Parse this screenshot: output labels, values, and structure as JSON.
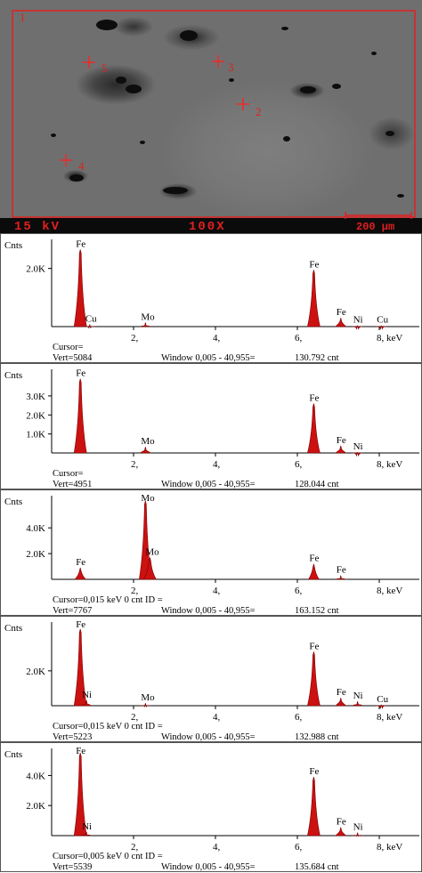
{
  "sem": {
    "region_label": "1",
    "points": [
      {
        "label": "2"
      },
      {
        "label": "3"
      },
      {
        "label": "4"
      },
      {
        "label": "5"
      }
    ],
    "voltage": "15 kV",
    "magnification": "100X",
    "scale_bar": "200 µm",
    "colors": {
      "frame": "#e02020",
      "marker": "#ff2020",
      "text": "#e02020"
    }
  },
  "spectra": [
    {
      "ylabel": "Cnts",
      "yticks": [
        "2.0K"
      ],
      "xticks": [
        "2,",
        "4,",
        "6,",
        "8, keV"
      ],
      "peaks": [
        {
          "element": "Fe",
          "energy": 0.7,
          "height": 2650
        },
        {
          "element": "Cu",
          "energy": 0.93,
          "height": 80
        },
        {
          "element": "Mo",
          "energy": 2.29,
          "height": 140
        },
        {
          "element": "Fe",
          "energy": 6.4,
          "height": 1950
        },
        {
          "element": "Fe",
          "energy": 7.06,
          "height": 300
        },
        {
          "element": "Ni",
          "energy": 7.47,
          "height": 40
        },
        {
          "element": "Cu",
          "energy": 8.05,
          "height": 40
        }
      ],
      "cursor": "Cursor=",
      "vert": "Vert=5084",
      "window": "Window 0,005 - 40,955=",
      "total": "130.792 cnt"
    },
    {
      "ylabel": "Cnts",
      "yticks": [
        "3.0K",
        "2.0K",
        "1.0K"
      ],
      "xticks": [
        "2,",
        "4,",
        "6,",
        "8, keV"
      ],
      "peaks": [
        {
          "element": "Fe",
          "energy": 0.7,
          "height": 3900
        },
        {
          "element": "Mo",
          "energy": 2.29,
          "height": 320
        },
        {
          "element": "Fe",
          "energy": 6.4,
          "height": 2600
        },
        {
          "element": "Fe",
          "energy": 7.06,
          "height": 380
        },
        {
          "element": "Ni",
          "energy": 7.47,
          "height": 40
        }
      ],
      "cursor": "Cursor=",
      "vert": "Vert=4951",
      "window": "Window 0,005 - 40,955=",
      "total": "128.044 cnt"
    },
    {
      "ylabel": "Cnts",
      "yticks": [
        "4.0K",
        "2.0K"
      ],
      "xticks": [
        "2,",
        "4,",
        "6,",
        "8, keV"
      ],
      "peaks": [
        {
          "element": "Fe",
          "energy": 0.7,
          "height": 900
        },
        {
          "element": "Mo",
          "energy": 2.29,
          "height": 6100
        },
        {
          "element": "Mo",
          "energy": 2.4,
          "height": 1700
        },
        {
          "element": "Fe",
          "energy": 6.4,
          "height": 1200
        },
        {
          "element": "Fe",
          "energy": 7.06,
          "height": 300
        }
      ],
      "cursor": "Cursor=0,015 keV   0 cnt  ID =",
      "vert": "Vert=7767",
      "window": "Window 0,005 - 40,955=",
      "total": "163.152 cnt"
    },
    {
      "ylabel": "Cnts",
      "yticks": [
        "2.0K"
      ],
      "xticks": [
        "2,",
        "4,",
        "6,",
        "8, keV"
      ],
      "peaks": [
        {
          "element": "Fe",
          "energy": 0.7,
          "height": 4400
        },
        {
          "element": "Ni",
          "energy": 0.85,
          "height": 300
        },
        {
          "element": "Mo",
          "energy": 2.29,
          "height": 150
        },
        {
          "element": "Fe",
          "energy": 6.4,
          "height": 3100
        },
        {
          "element": "Fe",
          "energy": 7.06,
          "height": 450
        },
        {
          "element": "Ni",
          "energy": 7.47,
          "height": 250
        },
        {
          "element": "Cu",
          "energy": 8.05,
          "height": 60
        }
      ],
      "cursor": "Cursor=0,015 keV   0 cnt  ID =",
      "vert": "Vert=5223",
      "window": "Window 0,005 - 40,955=",
      "total": "132.988 cnt"
    },
    {
      "ylabel": "Cnts",
      "yticks": [
        "4.0K",
        "2.0K"
      ],
      "xticks": [
        "2,",
        "4,",
        "6,",
        "8, keV"
      ],
      "peaks": [
        {
          "element": "Fe",
          "energy": 0.7,
          "height": 5500
        },
        {
          "element": "Ni",
          "energy": 0.85,
          "height": 250
        },
        {
          "element": "Fe",
          "energy": 6.4,
          "height": 3900
        },
        {
          "element": "Fe",
          "energy": 7.06,
          "height": 550
        },
        {
          "element": "Ni",
          "energy": 7.47,
          "height": 200
        }
      ],
      "cursor": "Cursor=0,005 keV   0 cnt  ID =",
      "vert": "Vert=5539",
      "window": "Window 0,005 - 40,955=",
      "total": "135.684 cnt"
    }
  ]
}
